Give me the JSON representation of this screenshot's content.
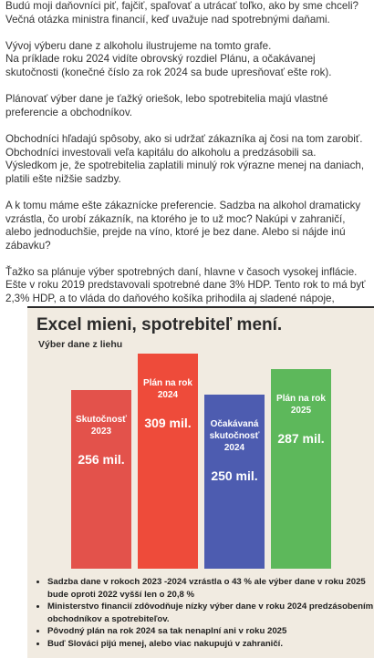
{
  "article": {
    "paragraphs": [
      [
        "Budú moji daňovníci piť, fajčiť, spaľovať a utrácať toľko, ako by sme chceli? Večná otázka ministra financií, keď uvažuje nad spotrebnými daňami."
      ],
      [
        "Vývoj výberu dane z alkoholu ilustrujeme na tomto grafe.",
        "Na príklade roku 2024 vidíte obrovský rozdiel Plánu, a očakávanej skutočnosti (konečné číslo za rok 2024 sa bude upresňovať ešte rok)."
      ],
      [
        "Plánovať výber dane je ťažký oriešok, lebo spotrebitelia majú vlastné preferencie a obchodníkov."
      ],
      [
        "Obchodníci hľadajú spôsoby, ako si udržať zákazníka aj čosi na tom zarobiť. Obchodníci investovali veľa kapitálu do alkoholu a predzásobili sa. Výsledkom je, že spotrebitelia zaplatili minulý rok výrazne menej na daniach, platili ešte nižšie sadzby."
      ],
      [
        "A k tomu máme ešte zákaznícke preferencie. Sadzba na alkohol dramaticky vzrástla, čo urobí zákazník, na ktorého je to už moc? Nakúpi v zahraničí, alebo jednoduchšie, prejde na víno, ktoré je bez dane. Alebo si nájde inú zábavku?"
      ],
      [
        "Ťažko sa plánuje výber spotrebných daní, hlavne v časoch vysokej inflácie. Ešte v roku 2019 predstavovali spotrebné dane 3% HDP. Tento rok to má byť 2,3% HDP, a to vláda do daňového košíka prihodila aj sladené nápoje,"
      ]
    ]
  },
  "chart_data": {
    "type": "bar",
    "title": "Excel mieni, spotrebiteľ mení.",
    "subtitle": "Výber dane z liehu",
    "categories": [
      "Skutočnosť 2023",
      "Plán na rok 2024",
      "Očakávaná skutočnosť 2024",
      "Plán na rok 2025"
    ],
    "values": [
      256,
      309,
      250,
      287
    ],
    "value_labels": [
      "256 mil.",
      "309 mil.",
      "250 mil.",
      "287 mil."
    ],
    "colors": [
      "#e3524b",
      "#ee4b3a",
      "#4d5cb0",
      "#5db85b"
    ],
    "annotations": [
      "Sadzba dane v rokoch 2023 -2024 vzrástla o 43 % ale výber dane v roku 2025 bude oproti 2022 vyšší len o 20,8 %",
      "Ministerstvo financií zdôvodňuje nízky výber dane v roku 2024 predzásobením obchodníkov a spotrebiteľov.",
      "Pôvodný plán na rok 2024 sa tak nenaplní ani v roku 2025",
      "Buď Slováci pijú menej, alebo viac nakupujú v zahraničí."
    ]
  }
}
